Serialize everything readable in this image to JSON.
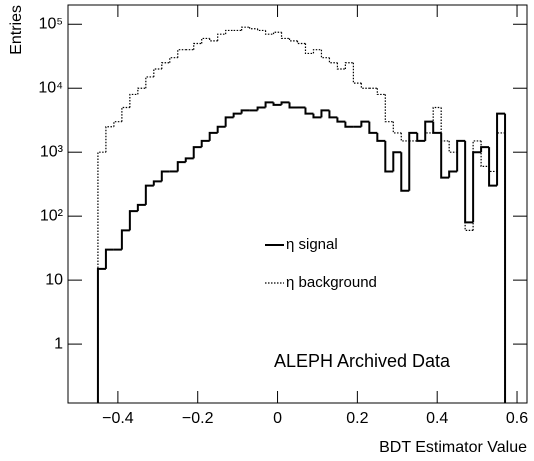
{
  "chart_data": {
    "type": "histogram",
    "x_label": "BDT Estimator Value",
    "y_label": "Entries",
    "annotation": "ALEPH Archived Data",
    "log_y": true,
    "legend_position": "center",
    "bins": [
      -0.45,
      -0.43,
      -0.41,
      -0.39,
      -0.37,
      -0.35,
      -0.33,
      -0.31,
      -0.29,
      -0.27,
      -0.25,
      -0.23,
      -0.21,
      -0.19,
      -0.17,
      -0.15,
      -0.13,
      -0.11,
      -0.09,
      -0.07,
      -0.05,
      -0.03,
      -0.01,
      0.01,
      0.03,
      0.05,
      0.07,
      0.09,
      0.11,
      0.13,
      0.15,
      0.17,
      0.19,
      0.21,
      0.23,
      0.25,
      0.27,
      0.29,
      0.31,
      0.33,
      0.35,
      0.37,
      0.39,
      0.41,
      0.43,
      0.45,
      0.47,
      0.49,
      0.51,
      0.53,
      0.55,
      0.57
    ],
    "series": [
      {
        "name": "η signal",
        "color": "#000000",
        "line_style": "solid",
        "values": [
          15,
          30,
          30,
          60,
          120,
          150,
          300,
          350,
          500,
          500,
          700,
          800,
          1200,
          1500,
          2000,
          2500,
          3500,
          4000,
          4500,
          4500,
          5000,
          6000,
          5500,
          6000,
          5000,
          5000,
          4000,
          3500,
          4500,
          3500,
          3000,
          2500,
          2500,
          3000,
          2000,
          1500,
          500,
          1000,
          250,
          2000,
          1500,
          3000,
          2000,
          400,
          500,
          1500,
          80,
          1000,
          1200,
          300,
          4000
        ]
      },
      {
        "name": "η background",
        "color": "#000000",
        "line_style": "dotted",
        "values": [
          1000,
          2500,
          3000,
          5000,
          8000,
          10000,
          15000,
          20000,
          25000,
          30000,
          40000,
          40000,
          50000,
          60000,
          55000,
          70000,
          80000,
          80000,
          90000,
          85000,
          80000,
          70000,
          75000,
          60000,
          55000,
          50000,
          35000,
          40000,
          30000,
          25000,
          20000,
          25000,
          12000,
          10000,
          10000,
          8000,
          3000,
          2000,
          1500,
          1500,
          1500,
          2000,
          5000,
          1500,
          1000,
          1500,
          60,
          1500,
          600,
          500,
          2000
        ]
      }
    ],
    "xlim": [
      -0.525,
      0.625
    ],
    "xticks": [
      {
        "value": -0.4,
        "label": "−0.4"
      },
      {
        "value": -0.2,
        "label": "−0.2"
      },
      0,
      0.2,
      0.4,
      0.6
    ],
    "ylim": [
      0.12,
      200000
    ],
    "yticks": [
      1,
      10,
      {
        "value": 100,
        "label": "10²"
      },
      {
        "value": 1000,
        "label": "10³"
      },
      {
        "value": 10000,
        "label": "10⁴"
      },
      {
        "value": 100000,
        "label": "10⁵"
      }
    ]
  }
}
